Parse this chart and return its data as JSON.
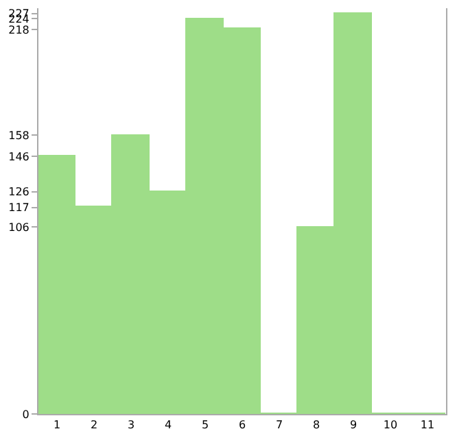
{
  "chart_data": {
    "type": "bar",
    "categories": [
      "1",
      "2",
      "3",
      "4",
      "5",
      "6",
      "7",
      "8",
      "9",
      "10",
      "11"
    ],
    "values": [
      146,
      117,
      158,
      126,
      224,
      218,
      0,
      106,
      227,
      0,
      0
    ],
    "color": "#9edd88",
    "ylim": [
      0,
      230
    ],
    "yticks": [
      0,
      106,
      117,
      126,
      146,
      158,
      218,
      224,
      227
    ],
    "grid": false
  }
}
